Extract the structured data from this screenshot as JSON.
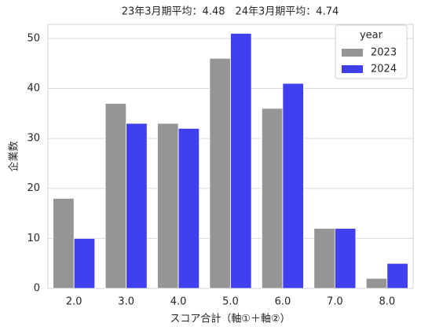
{
  "chart_data": {
    "type": "bar",
    "title": "23年3月期平均：4.48　24年3月期平均：4.74",
    "x_label": "スコア合計（軸①＋軸②）",
    "y_label": "企業数",
    "categories": [
      "2.0",
      "3.0",
      "4.0",
      "5.0",
      "6.0",
      "7.0",
      "8.0"
    ],
    "series": [
      {
        "name": "2023",
        "color": "#959595",
        "values": [
          18,
          37,
          33,
          46,
          36,
          12,
          2
        ]
      },
      {
        "name": "2024",
        "color": "#4040f0",
        "values": [
          10,
          33,
          32,
          51,
          41,
          12,
          5
        ]
      }
    ],
    "legend_title": "year",
    "legend": "upper right",
    "ylim": [
      0,
      52.8
    ],
    "yticks": [
      0,
      10,
      20,
      30,
      40,
      50
    ],
    "grid": true
  }
}
